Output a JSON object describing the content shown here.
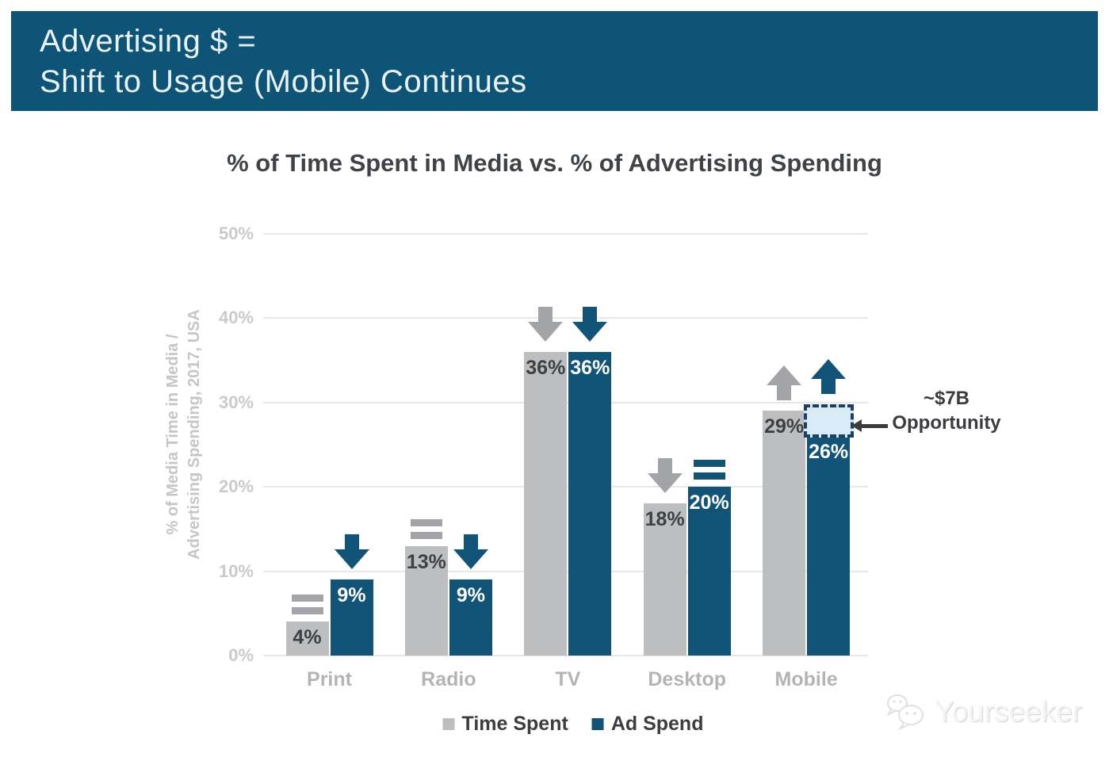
{
  "banner": {
    "line1": "Advertising $ =",
    "line2": "Shift to Usage (Mobile) Continues",
    "bg_color": "#0d5477",
    "text_color": "#e9f2f8"
  },
  "chart_data": {
    "type": "bar",
    "title": "% of Time Spent in Media vs. % of Advertising Spending",
    "ylabel_line1": "% of Media Time in Media /",
    "ylabel_line2": "Advertising Spending, 2017, USA",
    "categories": [
      "Print",
      "Radio",
      "TV",
      "Desktop",
      "Mobile"
    ],
    "ylim": [
      0,
      50
    ],
    "yticks": [
      {
        "label": "0%",
        "value": 0
      },
      {
        "label": "10%",
        "value": 10
      },
      {
        "label": "20%",
        "value": 20
      },
      {
        "label": "30%",
        "value": 30
      },
      {
        "label": "40%",
        "value": 40
      },
      {
        "label": "50%",
        "value": 50
      }
    ],
    "grid": true,
    "legend_position": "bottom",
    "series": [
      {
        "name": "Time Spent",
        "color": "#bcbec0",
        "label_color": "#3f4043",
        "trend_color": "#a2a4a7",
        "values": [
          4,
          13,
          36,
          18,
          29
        ],
        "labels": [
          "4%",
          "13%",
          "36%",
          "18%",
          "29%"
        ],
        "trends": [
          "flat",
          "flat",
          "down",
          "down",
          "up"
        ]
      },
      {
        "name": "Ad Spend",
        "color": "#115478",
        "label_color": "#ffffff",
        "trend_color": "#115478",
        "values": [
          9,
          9,
          36,
          20,
          26
        ],
        "labels": [
          "9%",
          "9%",
          "36%",
          "20%",
          "26%"
        ],
        "trends": [
          "down",
          "down",
          "down",
          "flat",
          "up"
        ]
      }
    ],
    "annotation": {
      "line1": "~$7B",
      "line2": "Opportunity",
      "target_category": "Mobile",
      "target_series": "Ad Spend",
      "box_from_value": 26,
      "box_to_value": 29.6,
      "box_fill": "#d9ebf7",
      "box_border": "#1d3f63"
    }
  },
  "watermark": {
    "brand": "Yourseeker"
  }
}
